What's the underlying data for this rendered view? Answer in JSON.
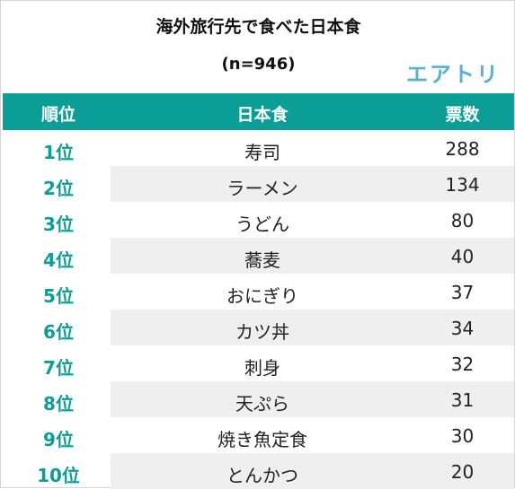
{
  "title": "海外旅行先で食べた日本食",
  "subtitle": "(n=946)",
  "logo_text": "エアトリ",
  "colors": {
    "header_bg": "#0a9e96",
    "rank_text": "#0a9e96",
    "logo": "#5ab0cf",
    "stripe": "#efefef"
  },
  "chart_data": {
    "type": "table",
    "title": "海外旅行先で食べた日本食",
    "subtitle": "(n=946)",
    "columns": [
      "順位",
      "日本食",
      "票数"
    ],
    "rows": [
      {
        "rank": "1位",
        "food": "寿司",
        "votes": 288
      },
      {
        "rank": "2位",
        "food": "ラーメン",
        "votes": 134
      },
      {
        "rank": "3位",
        "food": "うどん",
        "votes": 80
      },
      {
        "rank": "4位",
        "food": "蕎麦",
        "votes": 40
      },
      {
        "rank": "5位",
        "food": "おにぎり",
        "votes": 37
      },
      {
        "rank": "6位",
        "food": "カツ丼",
        "votes": 34
      },
      {
        "rank": "7位",
        "food": "刺身",
        "votes": 32
      },
      {
        "rank": "8位",
        "food": "天ぷら",
        "votes": 31
      },
      {
        "rank": "9位",
        "food": "焼き魚定食",
        "votes": 30
      },
      {
        "rank": "10位",
        "food": "とんかつ",
        "votes": 20
      }
    ]
  }
}
